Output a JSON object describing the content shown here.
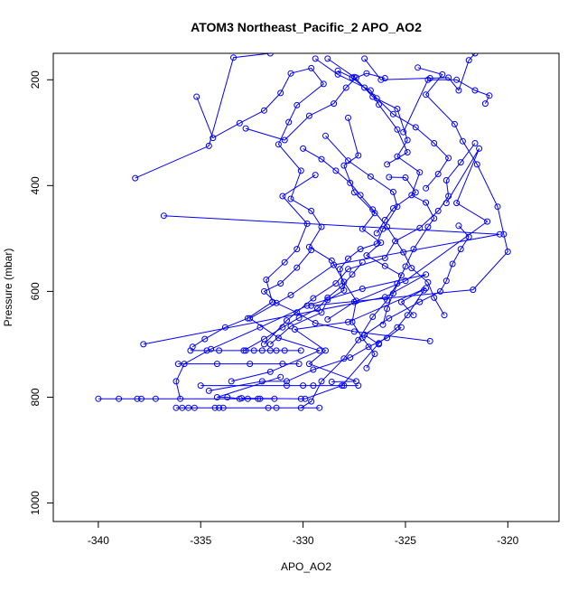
{
  "chart_data": {
    "type": "line",
    "title": "ATOM3 Northeast_Pacific_2 APO_AO2",
    "xlabel": "APO_AO2",
    "ylabel": "Pressure (mbar)",
    "xlim": [
      -342.2,
      -317.5
    ],
    "ylim": [
      1035,
      150
    ],
    "y_reversed": true,
    "grid": false,
    "marker": "open-circle",
    "x_ticks": [
      -340,
      -335,
      -330,
      -325,
      -320
    ],
    "x_tick_labels": [
      "-340",
      "-335",
      "-330",
      "-325",
      "-320"
    ],
    "y_ticks": [
      200,
      400,
      600,
      800,
      1000
    ],
    "y_tick_labels": [
      "200",
      "400",
      "600",
      "800",
      "1000"
    ],
    "colors": {
      "series": "#0000ff",
      "axes": "#000000",
      "background": "#ffffff"
    },
    "series": [
      {
        "points": [
          [
            -328.8,
            160
          ],
          [
            -327.5,
            195
          ],
          [
            -326.6,
            232
          ],
          [
            -325.4,
            255
          ],
          [
            -324.9,
            314
          ],
          [
            -325.4,
            345
          ],
          [
            -324.3,
            375
          ],
          [
            -324.7,
            418
          ],
          [
            -324.0,
            432
          ],
          [
            -323.6,
            462
          ],
          [
            -323.9,
            478
          ],
          [
            -324.6,
            520
          ],
          [
            -325.0,
            553
          ],
          [
            -325.4,
            585
          ],
          [
            -325.9,
            617
          ],
          [
            -326.6,
            648
          ],
          [
            -327.3,
            692
          ],
          [
            -328.0,
            727
          ],
          [
            -329.1,
            770
          ],
          [
            -329.6,
            808
          ],
          [
            -330.1,
            820
          ]
        ]
      },
      {
        "points": [
          [
            -335.2,
            232
          ],
          [
            -334.4,
            310
          ],
          [
            -333.1,
            282
          ],
          [
            -331.9,
            258
          ],
          [
            -331.1,
            225
          ],
          [
            -330.6,
            188
          ],
          [
            -329.6,
            178
          ],
          [
            -329.0,
            208
          ],
          [
            -330.3,
            248
          ],
          [
            -330.7,
            280
          ],
          [
            -331.2,
            322
          ],
          [
            -330.1,
            372
          ],
          [
            -330.6,
            425
          ],
          [
            -329.6,
            448
          ],
          [
            -329.1,
            478
          ],
          [
            -329.7,
            516
          ],
          [
            -328.6,
            542
          ],
          [
            -328.0,
            582
          ],
          [
            -327.4,
            618
          ],
          [
            -327.6,
            658
          ],
          [
            -327.1,
            688
          ],
          [
            -326.5,
            718
          ],
          [
            -326.9,
            745
          ]
        ]
      },
      {
        "points": [
          [
            -338.2,
            386
          ],
          [
            -334.6,
            325
          ],
          [
            -333.4,
            158
          ],
          [
            -331.6,
            150
          ]
        ]
      },
      {
        "points": [
          [
            -336.8,
            457
          ],
          [
            -320.4,
            492
          ],
          [
            -328.5,
            550
          ],
          [
            -330.6,
            607
          ],
          [
            -332.6,
            651
          ],
          [
            -331.2,
            688
          ],
          [
            -329.2,
            712
          ],
          [
            -331.6,
            752
          ],
          [
            -333.5,
            770
          ]
        ]
      },
      {
        "points": [
          [
            -337.8,
            700
          ],
          [
            -326.0,
            611
          ],
          [
            -324.0,
            568
          ],
          [
            -327.1,
            595
          ],
          [
            -329.8,
            627
          ],
          [
            -332.1,
            668
          ],
          [
            -334.5,
            709
          ],
          [
            -335.8,
            737
          ],
          [
            -336.2,
            770
          ],
          [
            -336.0,
            803
          ]
        ]
      },
      {
        "points": [
          [
            -340.0,
            803
          ],
          [
            -339.0,
            803
          ],
          [
            -338.1,
            803
          ],
          [
            -337.9,
            803
          ],
          [
            -337.2,
            803
          ],
          [
            -332.2,
            803
          ]
        ]
      },
      {
        "points": [
          [
            -336.2,
            820
          ],
          [
            -335.9,
            820
          ],
          [
            -335.6,
            820
          ],
          [
            -335.3,
            820
          ],
          [
            -334.3,
            820
          ],
          [
            -334.1,
            820
          ],
          [
            -333.9,
            820
          ],
          [
            -331.7,
            820
          ],
          [
            -331.3,
            820
          ],
          [
            -329.2,
            820
          ]
        ]
      },
      {
        "points": [
          [
            -336.1,
            737
          ],
          [
            -334.2,
            737
          ],
          [
            -332.6,
            737
          ],
          [
            -331.0,
            737
          ],
          [
            -330.2,
            737
          ]
        ]
      },
      {
        "points": [
          [
            -335.5,
            712
          ],
          [
            -334.7,
            712
          ],
          [
            -334.1,
            712
          ],
          [
            -332.8,
            712
          ],
          [
            -332.4,
            712
          ],
          [
            -332.0,
            712
          ],
          [
            -331.6,
            712
          ],
          [
            -331.3,
            712
          ],
          [
            -330.9,
            712
          ],
          [
            -330.1,
            712
          ]
        ]
      },
      {
        "points": [
          [
            -331.1,
            762
          ],
          [
            -334.2,
            800
          ],
          [
            -333.7,
            800
          ],
          [
            -333.1,
            803
          ],
          [
            -332.7,
            803
          ],
          [
            -332.1,
            803
          ],
          [
            -331.4,
            803
          ]
        ]
      },
      {
        "points": [
          [
            -335.0,
            778
          ],
          [
            -330.8,
            778
          ],
          [
            -330.0,
            778
          ],
          [
            -329.5,
            778
          ],
          [
            -328.0,
            778
          ],
          [
            -327.3,
            778
          ]
        ]
      },
      {
        "points": [
          [
            -327.0,
            160
          ],
          [
            -326.2,
            200
          ],
          [
            -323.8,
            197
          ],
          [
            -322.9,
            196
          ],
          [
            -322.4,
            220
          ],
          [
            -321.9,
            163
          ],
          [
            -321.6,
            150
          ]
        ]
      },
      {
        "points": [
          [
            -332.8,
            292
          ],
          [
            -330.9,
            314
          ],
          [
            -329.7,
            268
          ],
          [
            -328.5,
            245
          ],
          [
            -327.9,
            215
          ],
          [
            -327.4,
            196
          ],
          [
            -326.9,
            188
          ],
          [
            -326.0,
            197
          ]
        ]
      },
      {
        "points": [
          [
            -328.9,
            306
          ],
          [
            -327.8,
            353
          ],
          [
            -326.7,
            383
          ],
          [
            -325.6,
            412
          ],
          [
            -325.4,
            440
          ],
          [
            -326.1,
            482
          ],
          [
            -326.4,
            510
          ],
          [
            -327.2,
            520
          ],
          [
            -327.8,
            538
          ],
          [
            -328.2,
            558
          ],
          [
            -328.0,
            598
          ],
          [
            -328.8,
            616
          ],
          [
            -329.1,
            640
          ],
          [
            -330.6,
            666
          ],
          [
            -331.6,
            700
          ]
        ]
      },
      {
        "points": [
          [
            -327.8,
            272
          ],
          [
            -327.3,
            343
          ],
          [
            -328.0,
            362
          ],
          [
            -327.5,
            413
          ],
          [
            -326.5,
            452
          ],
          [
            -327.1,
            482
          ],
          [
            -326.2,
            508
          ],
          [
            -326.9,
            532
          ],
          [
            -326.0,
            552
          ],
          [
            -325.2,
            570
          ],
          [
            -325.6,
            604
          ],
          [
            -325.9,
            633
          ],
          [
            -326.1,
            663
          ]
        ]
      },
      {
        "points": [
          [
            -325.1,
            299
          ],
          [
            -323.9,
            200
          ],
          [
            -322.5,
            200
          ],
          [
            -321.6,
            220
          ],
          [
            -320.9,
            230
          ],
          [
            -321.1,
            245
          ]
        ]
      },
      {
        "points": [
          [
            -324.4,
            177
          ],
          [
            -323.2,
            190
          ],
          [
            -324.0,
            228
          ],
          [
            -322.6,
            284
          ],
          [
            -322.2,
            316
          ],
          [
            -321.5,
            360
          ],
          [
            -320.5,
            440
          ],
          [
            -320.2,
            492
          ],
          [
            -320.0,
            525
          ],
          [
            -321.7,
            597
          ],
          [
            -329.6,
            627
          ]
        ]
      },
      {
        "points": [
          [
            -325.9,
            360
          ],
          [
            -324.9,
            337
          ],
          [
            -325.4,
            294
          ],
          [
            -326.3,
            247
          ],
          [
            -326.7,
            220
          ],
          [
            -328.3,
            190
          ],
          [
            -329.4,
            160
          ]
        ]
      },
      {
        "points": [
          [
            -323.0,
            433
          ],
          [
            -321.4,
            330
          ],
          [
            -322.5,
            433
          ],
          [
            -321.0,
            468
          ],
          [
            -325.0,
            580
          ],
          [
            -327.5,
            620
          ],
          [
            -328.8,
            653
          ]
        ]
      },
      {
        "points": [
          [
            -324.0,
            405
          ],
          [
            -323.4,
            378
          ],
          [
            -322.9,
            348
          ],
          [
            -323.6,
            320
          ],
          [
            -324.5,
            290
          ],
          [
            -325.6,
            265
          ],
          [
            -326.4,
            235
          ],
          [
            -327.0,
            215
          ],
          [
            -327.6,
            196
          ],
          [
            -328.3,
            183
          ]
        ]
      },
      {
        "points": [
          [
            -323.1,
            645
          ],
          [
            -323.6,
            612
          ],
          [
            -323.9,
            583
          ],
          [
            -324.7,
            556
          ],
          [
            -325.1,
            526
          ],
          [
            -325.9,
            478
          ],
          [
            -326.6,
            445
          ],
          [
            -327.2,
            418
          ],
          [
            -327.7,
            395
          ],
          [
            -328.4,
            372
          ],
          [
            -329.1,
            350
          ],
          [
            -330.0,
            330
          ]
        ]
      },
      {
        "points": [
          [
            -329.4,
            380
          ],
          [
            -331.0,
            420
          ],
          [
            -329.8,
            472
          ],
          [
            -330.3,
            520
          ],
          [
            -330.9,
            545
          ],
          [
            -331.8,
            578
          ],
          [
            -331.5,
            620
          ],
          [
            -332.7,
            651
          ],
          [
            -333.8,
            668
          ],
          [
            -334.8,
            690
          ],
          [
            -335.4,
            705
          ]
        ]
      },
      {
        "points": [
          [
            -324.6,
            645
          ],
          [
            -325.2,
            620
          ],
          [
            -324.0,
            594
          ],
          [
            -327.8,
            658
          ],
          [
            -330.4,
            672
          ],
          [
            -328.9,
            712
          ],
          [
            -329.7,
            737
          ],
          [
            -327.4,
            770
          ],
          [
            -328.6,
            771
          ]
        ]
      },
      {
        "points": [
          [
            -331.9,
            700
          ],
          [
            -330.8,
            655
          ],
          [
            -329.5,
            613
          ],
          [
            -328.4,
            585
          ],
          [
            -327.8,
            558
          ],
          [
            -326.0,
            537
          ],
          [
            -325.5,
            505
          ],
          [
            -324.3,
            480
          ],
          [
            -323.4,
            448
          ],
          [
            -322.9,
            420
          ],
          [
            -323.0,
            390
          ],
          [
            -322.3,
            356
          ],
          [
            -321.6,
            320
          ]
        ]
      },
      {
        "points": [
          [
            -326.3,
            700
          ],
          [
            -327.0,
            682
          ],
          [
            -325.8,
            651
          ],
          [
            -324.3,
            620
          ],
          [
            -323.3,
            600
          ],
          [
            -323.0,
            580
          ],
          [
            -322.7,
            548
          ],
          [
            -322.3,
            520
          ],
          [
            -321.9,
            497
          ],
          [
            -322.4,
            476
          ]
        ]
      },
      {
        "points": [
          [
            -323.8,
            694
          ],
          [
            -327.5,
            676
          ],
          [
            -329.4,
            660
          ],
          [
            -330.3,
            640
          ],
          [
            -331.3,
            622
          ],
          [
            -331.9,
            600
          ],
          [
            -331.1,
            585
          ],
          [
            -330.3,
            555
          ],
          [
            -329.6,
            522
          ]
        ]
      },
      {
        "points": [
          [
            -325.8,
            384
          ],
          [
            -325.0,
            385
          ],
          [
            -324.5,
            413
          ],
          [
            -325.6,
            443
          ],
          [
            -326.0,
            465
          ],
          [
            -326.4,
            490
          ]
        ]
      },
      {
        "points": [
          [
            -333.0,
            802
          ],
          [
            -330.1,
            803
          ],
          [
            -329.9,
            803
          ],
          [
            -328.1,
            778
          ],
          [
            -326.3,
            698
          ],
          [
            -325.4,
            668
          ],
          [
            -324.9,
            645
          ],
          [
            -324.1,
            598
          ]
        ]
      },
      {
        "points": [
          [
            -334.6,
            788
          ],
          [
            -332.0,
            770
          ],
          [
            -330.8,
            770
          ],
          [
            -329.5,
            748
          ],
          [
            -327.7,
            725
          ],
          [
            -326.8,
            705
          ],
          [
            -325.9,
            688
          ],
          [
            -325.2,
            668
          ]
        ]
      },
      {
        "points": [
          [
            -332.9,
            712
          ],
          [
            -331.9,
            690
          ],
          [
            -331.0,
            668
          ],
          [
            -330.2,
            650
          ],
          [
            -329.3,
            633
          ],
          [
            -328.8,
            612
          ],
          [
            -328.1,
            590
          ],
          [
            -327.6,
            568
          ],
          [
            -327.1,
            545
          ]
        ]
      }
    ]
  }
}
